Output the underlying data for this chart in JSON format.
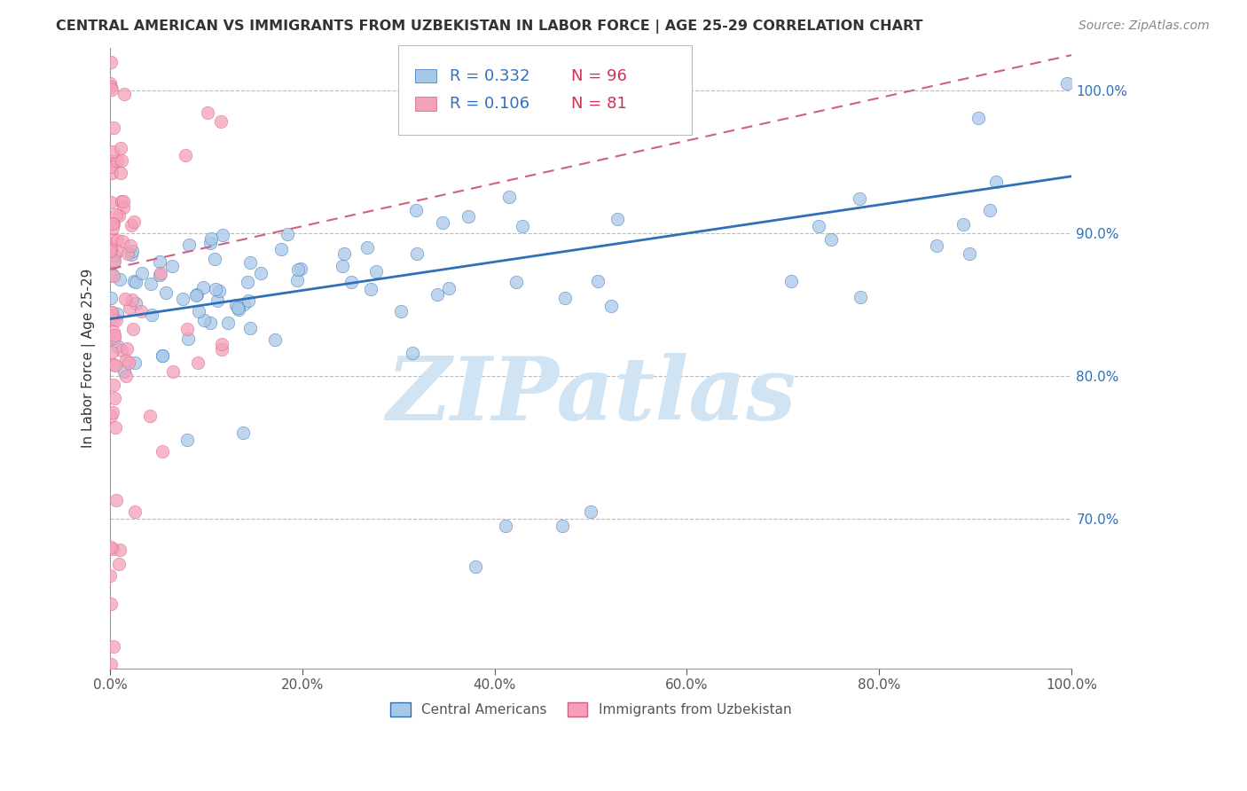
{
  "title": "CENTRAL AMERICAN VS IMMIGRANTS FROM UZBEKISTAN IN LABOR FORCE | AGE 25-29 CORRELATION CHART",
  "source": "Source: ZipAtlas.com",
  "ylabel": "In Labor Force | Age 25-29",
  "ytick_labels": [
    "70.0%",
    "80.0%",
    "90.0%",
    "100.0%"
  ],
  "ytick_values": [
    0.7,
    0.8,
    0.9,
    1.0
  ],
  "xlim": [
    0.0,
    1.0
  ],
  "ylim": [
    0.595,
    1.03
  ],
  "legend_blue_r": "0.332",
  "legend_blue_n": "96",
  "legend_pink_r": "0.106",
  "legend_pink_n": "81",
  "legend_label_blue": "Central Americans",
  "legend_label_pink": "Immigrants from Uzbekistan",
  "blue_color": "#a8c8e8",
  "pink_color": "#f4a0b8",
  "blue_line_color": "#3070b8",
  "pink_line_color": "#d06080",
  "watermark": "ZIPatlas",
  "watermark_color": "#d0e4f4",
  "background_color": "#ffffff",
  "grid_color": "#bbbbbb",
  "title_fontsize": 11.5,
  "axis_label_fontsize": 11,
  "tick_fontsize": 11,
  "source_fontsize": 10,
  "legend_r_color": "#3070b8",
  "legend_n_color": "#cc3355"
}
